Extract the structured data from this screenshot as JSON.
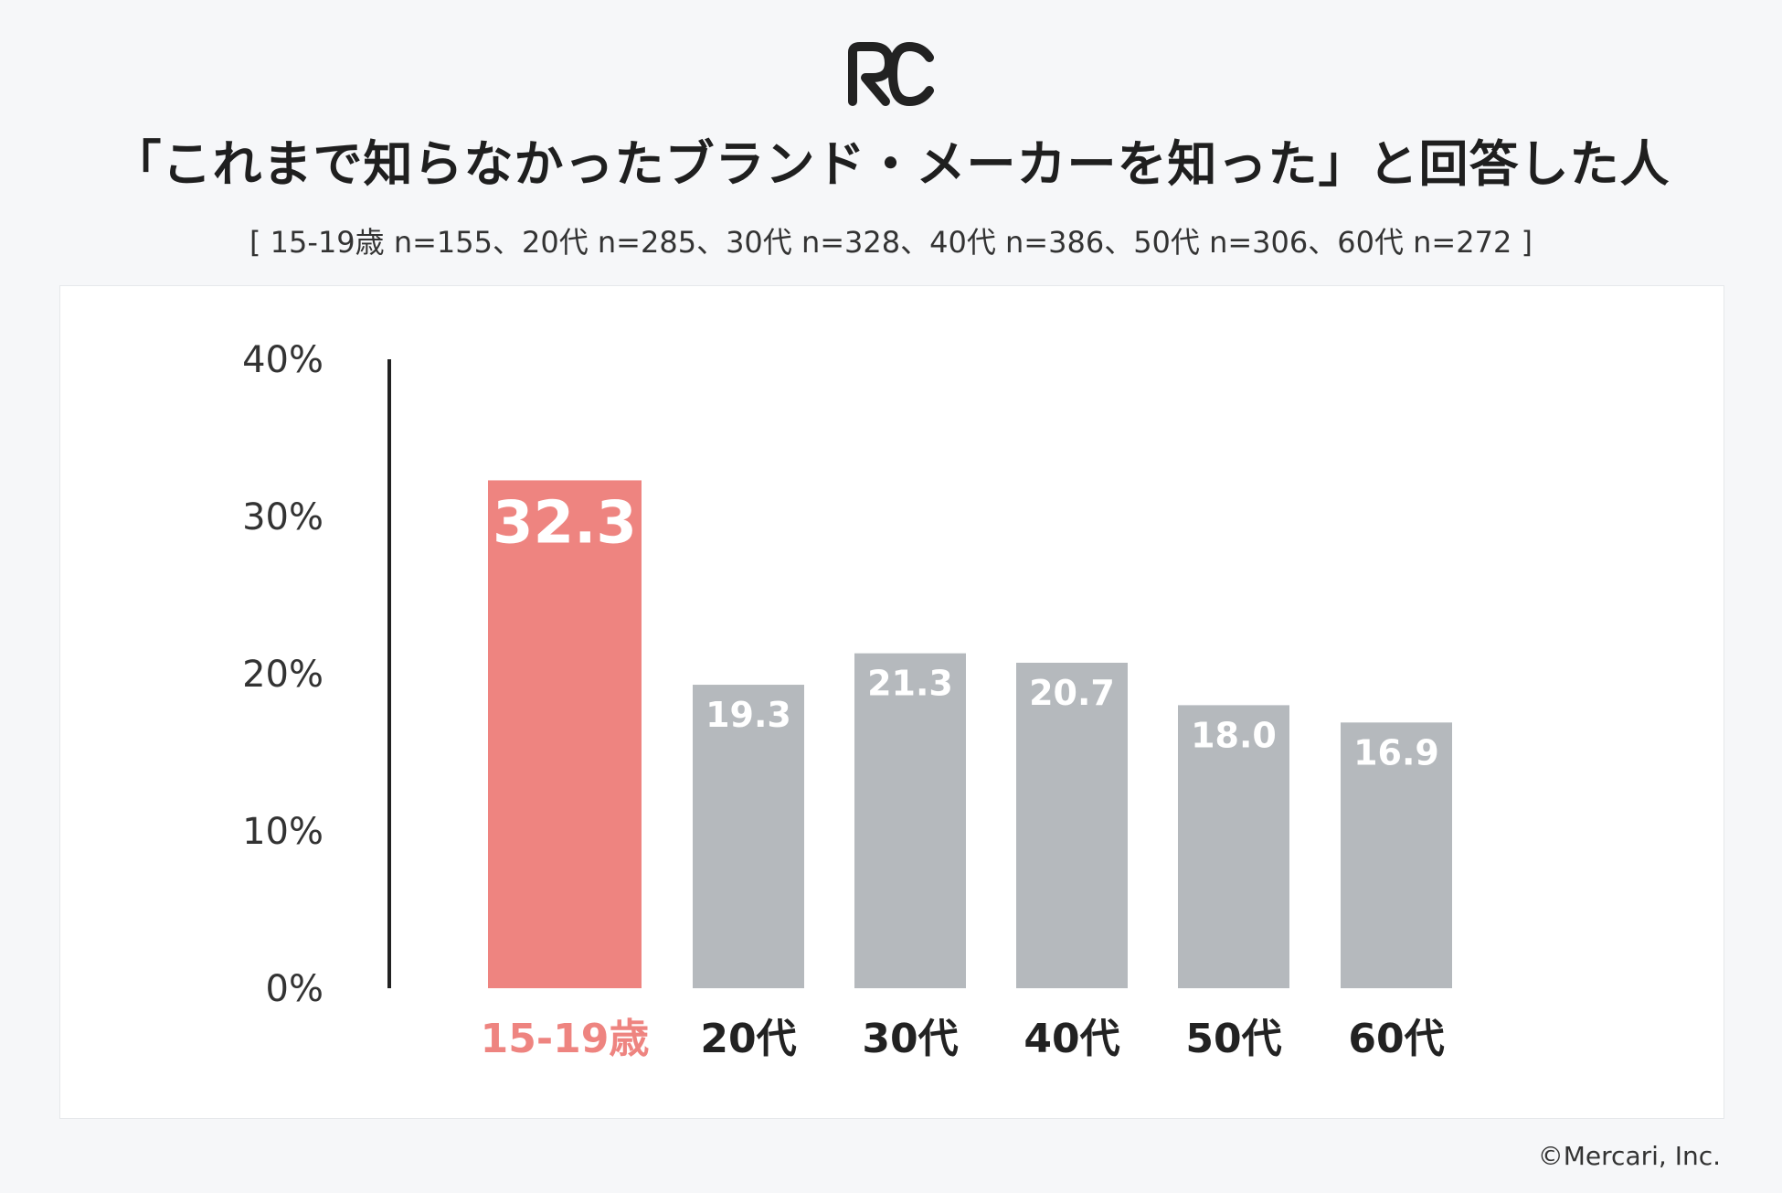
{
  "header": {
    "logo_text": "RC",
    "title": "「これまで知らなかったブランド・メーカーを知った」と回答した人",
    "subtitle": "[ 15-19歳 n=155、20代 n=285、30代 n=328、40代 n=386、50代 n=306、60代 n=272 ]"
  },
  "footer": {
    "copyright": "©Mercari, Inc."
  },
  "colors": {
    "highlight": "#ee8480",
    "bar": "#b5b9bd",
    "axis": "#222222",
    "label_dark": "#222222",
    "value_text": "#ffffff"
  },
  "chart_data": {
    "type": "bar",
    "title": "「これまで知らなかったブランド・メーカーを知った」と回答した人",
    "xlabel": "",
    "ylabel": "",
    "unit": "%",
    "categories": [
      "15-19歳",
      "20代",
      "30代",
      "40代",
      "50代",
      "60代"
    ],
    "values": [
      32.3,
      19.3,
      21.3,
      20.7,
      18.0,
      16.9
    ],
    "value_labels": [
      "32.3",
      "19.3",
      "21.3",
      "20.7",
      "18.0",
      "16.9"
    ],
    "highlight_index": 0,
    "ylim": [
      0,
      40
    ],
    "yticks": [
      0,
      10,
      20,
      30,
      40
    ],
    "ytick_labels": [
      "0%",
      "10%",
      "20%",
      "30%",
      "40%"
    ],
    "grid": false,
    "legend": "none"
  }
}
